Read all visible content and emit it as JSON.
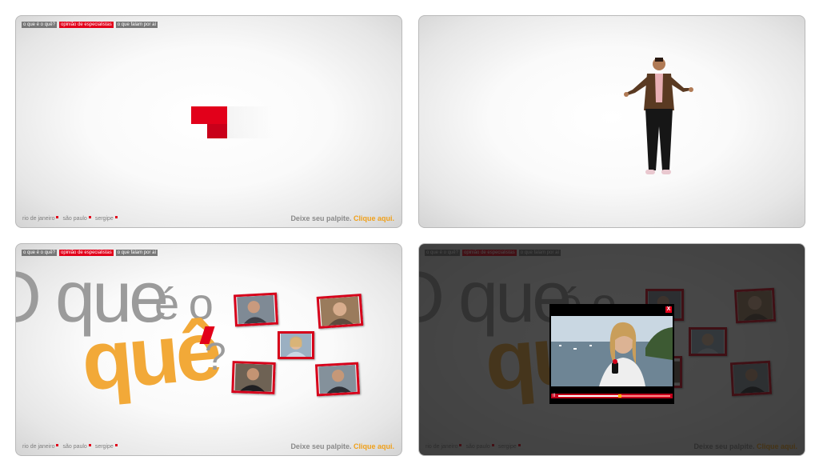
{
  "nav": {
    "top": [
      "o que é o quê?",
      "opinião de especialistas",
      "o que falam por aí"
    ],
    "bottom": [
      "rio de janeiro",
      "são paulo",
      "sergipe"
    ],
    "cta_text": "Deixe seu palpite.",
    "cta_link": "Clique aqui."
  },
  "headline": {
    "part1": "O que",
    "part2": "é o",
    "part3": "quê",
    "mark": "?"
  },
  "player": {
    "close_label": "X",
    "play_label": "II",
    "progress": 0.55
  },
  "colors": {
    "accent": "#e2001a",
    "headline_orange": "#f2a938",
    "headline_gray": "#9b9b9b"
  }
}
